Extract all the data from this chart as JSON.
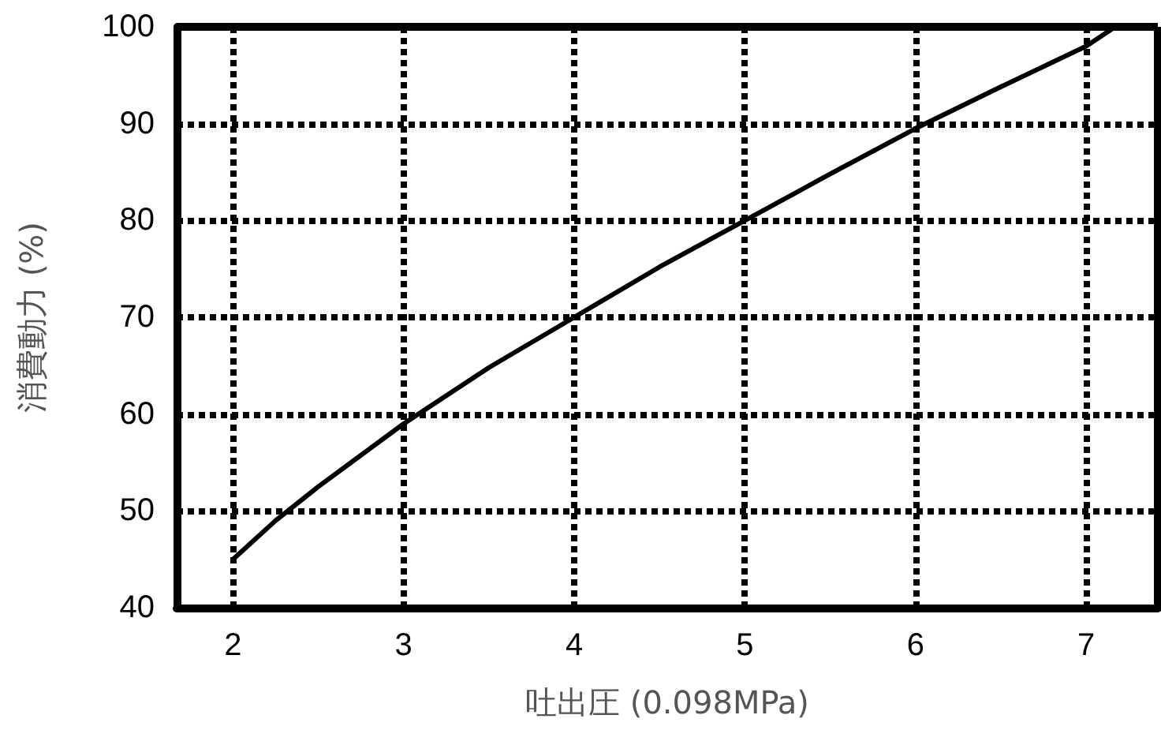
{
  "chart_data": {
    "type": "line",
    "xlabel": "吐出圧 (0.098MPa)",
    "ylabel": "消費動力 (%)",
    "x": [
      2,
      2.25,
      2.5,
      3,
      3.5,
      4,
      4.5,
      5,
      5.5,
      6,
      6.5,
      7,
      7.17
    ],
    "series": [
      {
        "color": "#000000",
        "values": [
          45,
          49,
          52.5,
          59,
          64.8,
          70,
          75.2,
          80,
          84.8,
          89.5,
          93.8,
          98,
          100
        ]
      }
    ],
    "xlim": [
      1.67,
      7.42
    ],
    "xticks": [
      2,
      3,
      4,
      5,
      6,
      7
    ],
    "ylim": [
      40,
      100
    ],
    "yticks": [
      40,
      50,
      60,
      70,
      80,
      90,
      100
    ],
    "grid": true,
    "marker": "none",
    "line_style": "solid"
  }
}
